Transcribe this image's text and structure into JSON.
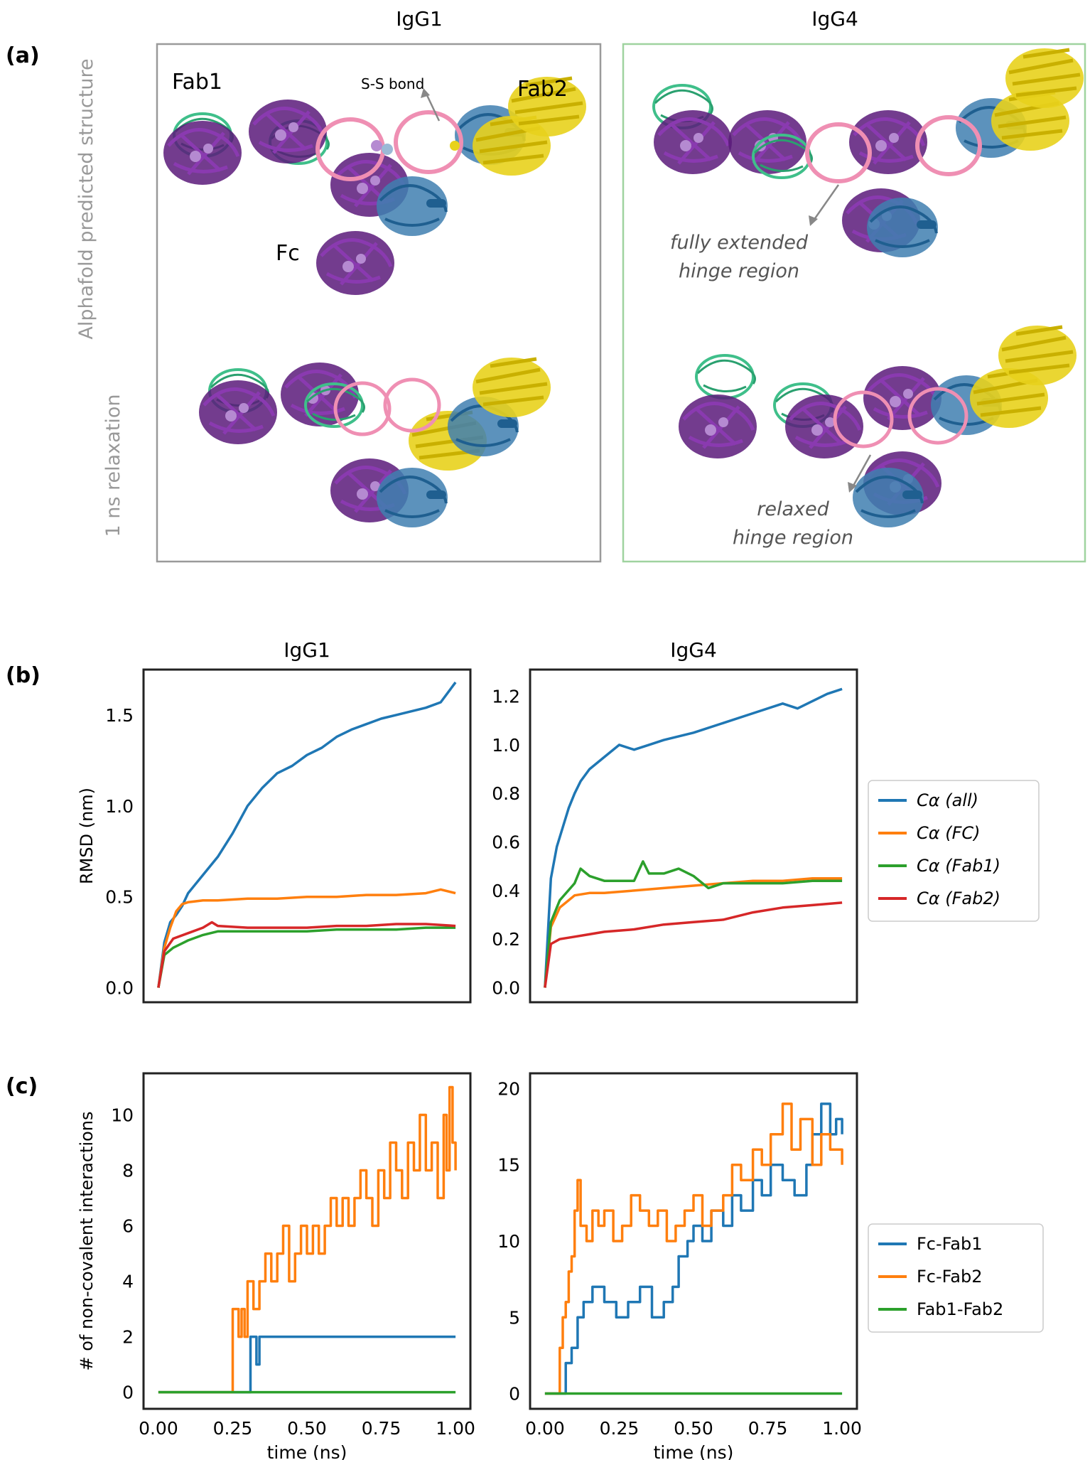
{
  "panel_a": {
    "label": "(a)",
    "col_titles": [
      "IgG1",
      "IgG4"
    ],
    "row_labels": [
      "Alphafold predicted structure",
      "1 ns relaxation"
    ],
    "annotations": {
      "fab1": "Fab1",
      "fab2": "Fab2",
      "fc": "Fc",
      "ss_bond": "S-S bond",
      "extended_1": "fully extended",
      "extended_2": "hinge region",
      "relaxed_1": "relaxed",
      "relaxed_2": "hinge region"
    },
    "colors": {
      "heavy": "#5b1a7a",
      "light_green": "#3fbf8a",
      "heavy2": "#3f7fb0",
      "light_yellow": "#e8d21c",
      "hinge_ring": "#ef8fb3",
      "igg1_border": "#999999",
      "igg4_border": "#9fd39f"
    }
  },
  "panel_b_label": "(b)",
  "panel_c_label": "(c)",
  "legends": {
    "b": [
      "Cα (all)",
      "Cα (FC)",
      "Cα (Fab1)",
      "Cα (Fab2)"
    ],
    "c": [
      "Fc-Fab1",
      "Fc-Fab2",
      "Fab1-Fab2"
    ]
  },
  "chart_data": [
    {
      "id": "b1",
      "type": "line",
      "title": "IgG1",
      "xlabel": "",
      "ylabel": "RMSD (nm)",
      "xlim": [
        -0.05,
        1.05
      ],
      "ylim": [
        -0.08,
        1.75
      ],
      "yticks": [
        0.0,
        0.5,
        1.0,
        1.5
      ],
      "ytick_labels": [
        "0.0",
        "0.5",
        "1.0",
        "1.5"
      ],
      "xticks": [],
      "xtick_labels": [],
      "series": [
        {
          "name": "Cα (all)",
          "color": "#1f77b4",
          "x": [
            0,
            0.02,
            0.04,
            0.06,
            0.08,
            0.1,
            0.12,
            0.15,
            0.2,
            0.25,
            0.3,
            0.35,
            0.4,
            0.45,
            0.5,
            0.55,
            0.6,
            0.65,
            0.7,
            0.75,
            0.8,
            0.85,
            0.9,
            0.95,
            1.0
          ],
          "y": [
            0.0,
            0.25,
            0.36,
            0.4,
            0.45,
            0.52,
            0.56,
            0.62,
            0.72,
            0.85,
            1.0,
            1.1,
            1.18,
            1.22,
            1.28,
            1.32,
            1.38,
            1.42,
            1.45,
            1.48,
            1.5,
            1.52,
            1.54,
            1.57,
            1.68
          ]
        },
        {
          "name": "Cα (FC)",
          "color": "#ff7f0e",
          "x": [
            0,
            0.02,
            0.04,
            0.06,
            0.08,
            0.1,
            0.15,
            0.2,
            0.3,
            0.4,
            0.5,
            0.6,
            0.7,
            0.8,
            0.9,
            0.95,
            1.0
          ],
          "y": [
            0.0,
            0.22,
            0.33,
            0.42,
            0.46,
            0.47,
            0.48,
            0.48,
            0.49,
            0.49,
            0.5,
            0.5,
            0.51,
            0.51,
            0.52,
            0.54,
            0.52
          ]
        },
        {
          "name": "Cα (Fab1)",
          "color": "#2ca02c",
          "x": [
            0,
            0.02,
            0.05,
            0.1,
            0.15,
            0.2,
            0.3,
            0.4,
            0.5,
            0.6,
            0.7,
            0.8,
            0.9,
            1.0
          ],
          "y": [
            0.0,
            0.18,
            0.22,
            0.26,
            0.29,
            0.31,
            0.31,
            0.31,
            0.31,
            0.32,
            0.32,
            0.32,
            0.33,
            0.33
          ]
        },
        {
          "name": "Cα (Fab2)",
          "color": "#d62728",
          "x": [
            0,
            0.02,
            0.05,
            0.1,
            0.15,
            0.18,
            0.2,
            0.3,
            0.4,
            0.5,
            0.6,
            0.7,
            0.8,
            0.9,
            1.0
          ],
          "y": [
            0.0,
            0.2,
            0.27,
            0.3,
            0.33,
            0.36,
            0.34,
            0.33,
            0.33,
            0.33,
            0.34,
            0.34,
            0.35,
            0.35,
            0.34
          ]
        }
      ]
    },
    {
      "id": "b2",
      "type": "line",
      "title": "IgG4",
      "xlabel": "",
      "ylabel": "",
      "xlim": [
        -0.05,
        1.05
      ],
      "ylim": [
        -0.06,
        1.31
      ],
      "yticks": [
        0.0,
        0.2,
        0.4,
        0.6,
        0.8,
        1.0,
        1.2
      ],
      "ytick_labels": [
        "0.0",
        "0.2",
        "0.4",
        "0.6",
        "0.8",
        "1.0",
        "1.2"
      ],
      "xticks": [],
      "xtick_labels": [],
      "series": [
        {
          "name": "Cα (all)",
          "color": "#1f77b4",
          "x": [
            0,
            0.02,
            0.04,
            0.06,
            0.08,
            0.1,
            0.12,
            0.15,
            0.2,
            0.25,
            0.3,
            0.35,
            0.4,
            0.5,
            0.6,
            0.7,
            0.8,
            0.85,
            0.9,
            0.95,
            1.0
          ],
          "y": [
            0.0,
            0.45,
            0.58,
            0.66,
            0.74,
            0.8,
            0.85,
            0.9,
            0.95,
            1.0,
            0.98,
            1.0,
            1.02,
            1.05,
            1.09,
            1.13,
            1.17,
            1.15,
            1.18,
            1.21,
            1.23
          ]
        },
        {
          "name": "Cα (FC)",
          "color": "#ff7f0e",
          "x": [
            0,
            0.02,
            0.05,
            0.1,
            0.15,
            0.2,
            0.3,
            0.4,
            0.5,
            0.6,
            0.7,
            0.8,
            0.9,
            1.0
          ],
          "y": [
            0.0,
            0.25,
            0.33,
            0.38,
            0.39,
            0.39,
            0.4,
            0.41,
            0.42,
            0.43,
            0.44,
            0.44,
            0.45,
            0.45
          ]
        },
        {
          "name": "Cα (Fab1)",
          "color": "#2ca02c",
          "x": [
            0,
            0.02,
            0.05,
            0.1,
            0.12,
            0.15,
            0.2,
            0.25,
            0.3,
            0.33,
            0.35,
            0.4,
            0.45,
            0.5,
            0.55,
            0.6,
            0.7,
            0.8,
            0.9,
            1.0
          ],
          "y": [
            0.0,
            0.27,
            0.36,
            0.43,
            0.49,
            0.46,
            0.44,
            0.44,
            0.44,
            0.52,
            0.47,
            0.47,
            0.49,
            0.46,
            0.41,
            0.43,
            0.43,
            0.43,
            0.44,
            0.44
          ]
        },
        {
          "name": "Cα (Fab2)",
          "color": "#d62728",
          "x": [
            0,
            0.02,
            0.05,
            0.1,
            0.15,
            0.2,
            0.3,
            0.4,
            0.5,
            0.6,
            0.7,
            0.8,
            0.9,
            1.0
          ],
          "y": [
            0.0,
            0.18,
            0.2,
            0.21,
            0.22,
            0.23,
            0.24,
            0.26,
            0.27,
            0.28,
            0.31,
            0.33,
            0.34,
            0.35
          ]
        }
      ]
    },
    {
      "id": "c1",
      "type": "line",
      "title": "",
      "xlabel": "time (ns)",
      "ylabel": "# of non-covalent interactions",
      "xlim": [
        -0.05,
        1.05
      ],
      "ylim": [
        -0.6,
        11.5
      ],
      "yticks": [
        0,
        2,
        4,
        6,
        8,
        10
      ],
      "ytick_labels": [
        "0",
        "2",
        "4",
        "6",
        "8",
        "10"
      ],
      "xticks": [
        0.0,
        0.25,
        0.5,
        0.75,
        1.0
      ],
      "xtick_labels": [
        "0.00",
        "0.25",
        "0.50",
        "0.75",
        "1.00"
      ],
      "step": true,
      "series": [
        {
          "name": "Fc-Fab1",
          "color": "#1f77b4",
          "x": [
            0,
            0.3,
            0.31,
            0.33,
            0.34,
            0.35,
            1.0
          ],
          "y": [
            0,
            0,
            2,
            1,
            2,
            2,
            2
          ]
        },
        {
          "name": "Fc-Fab2",
          "color": "#ff7f0e",
          "x": [
            0,
            0.24,
            0.25,
            0.27,
            0.28,
            0.29,
            0.3,
            0.32,
            0.34,
            0.36,
            0.38,
            0.4,
            0.42,
            0.44,
            0.46,
            0.48,
            0.5,
            0.52,
            0.54,
            0.56,
            0.58,
            0.6,
            0.62,
            0.64,
            0.66,
            0.68,
            0.7,
            0.72,
            0.74,
            0.76,
            0.78,
            0.8,
            0.82,
            0.84,
            0.86,
            0.88,
            0.9,
            0.92,
            0.94,
            0.96,
            0.97,
            0.98,
            0.99,
            1.0
          ],
          "y": [
            0,
            0,
            3,
            2,
            3,
            2,
            4,
            3,
            4,
            5,
            4,
            5,
            6,
            4,
            5,
            6,
            5,
            6,
            5,
            6,
            7,
            6,
            7,
            6,
            7,
            8,
            7,
            6,
            8,
            7,
            9,
            8,
            7,
            9,
            8,
            10,
            8,
            9,
            7,
            10,
            8,
            11,
            9,
            8
          ]
        },
        {
          "name": "Fab1-Fab2",
          "color": "#2ca02c",
          "x": [
            0,
            1.0
          ],
          "y": [
            0,
            0
          ]
        }
      ]
    },
    {
      "id": "c2",
      "type": "line",
      "title": "",
      "xlabel": "time (ns)",
      "ylabel": "",
      "xlim": [
        -0.05,
        1.05
      ],
      "ylim": [
        -1.0,
        21.0
      ],
      "yticks": [
        0,
        5,
        10,
        15,
        20
      ],
      "ytick_labels": [
        "0",
        "5",
        "10",
        "15",
        "20"
      ],
      "xticks": [
        0.0,
        0.25,
        0.5,
        0.75,
        1.0
      ],
      "xtick_labels": [
        "0.00",
        "0.25",
        "0.50",
        "0.75",
        "1.00"
      ],
      "step": true,
      "series": [
        {
          "name": "Fc-Fab1",
          "color": "#1f77b4",
          "x": [
            0,
            0.05,
            0.07,
            0.09,
            0.11,
            0.13,
            0.16,
            0.2,
            0.24,
            0.28,
            0.32,
            0.36,
            0.4,
            0.43,
            0.45,
            0.48,
            0.5,
            0.53,
            0.56,
            0.6,
            0.63,
            0.66,
            0.7,
            0.73,
            0.76,
            0.8,
            0.84,
            0.88,
            0.9,
            0.93,
            0.96,
            0.98,
            1.0
          ],
          "y": [
            0,
            0,
            2,
            3,
            5,
            6,
            7,
            6,
            5,
            6,
            7,
            5,
            6,
            7,
            9,
            10,
            11,
            10,
            12,
            11,
            13,
            12,
            14,
            13,
            15,
            14,
            13,
            15,
            17,
            19,
            17,
            18,
            17
          ]
        },
        {
          "name": "Fc-Fab2",
          "color": "#ff7f0e",
          "x": [
            0,
            0.04,
            0.05,
            0.06,
            0.07,
            0.08,
            0.09,
            0.1,
            0.11,
            0.12,
            0.14,
            0.16,
            0.18,
            0.2,
            0.23,
            0.26,
            0.29,
            0.32,
            0.35,
            0.38,
            0.41,
            0.44,
            0.47,
            0.5,
            0.53,
            0.56,
            0.6,
            0.63,
            0.66,
            0.7,
            0.73,
            0.76,
            0.8,
            0.83,
            0.86,
            0.9,
            0.93,
            0.96,
            1.0
          ],
          "y": [
            0,
            0,
            3,
            5,
            6,
            8,
            9,
            12,
            14,
            11,
            10,
            12,
            11,
            12,
            10,
            11,
            13,
            12,
            11,
            12,
            10,
            11,
            12,
            13,
            11,
            12,
            13,
            15,
            14,
            16,
            15,
            17,
            19,
            16,
            18,
            15,
            17,
            16,
            15
          ]
        },
        {
          "name": "Fab1-Fab2",
          "color": "#2ca02c",
          "x": [
            0,
            1.0
          ],
          "y": [
            0,
            0
          ]
        }
      ]
    }
  ]
}
